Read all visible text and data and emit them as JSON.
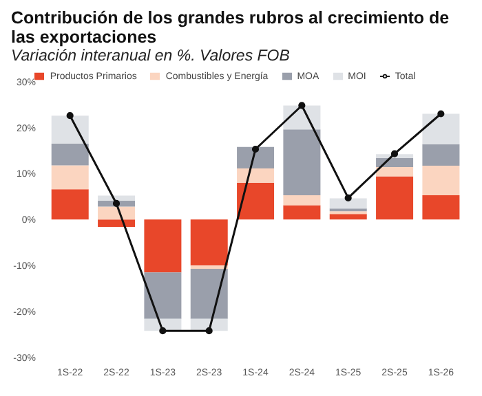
{
  "chart_data": {
    "type": "bar",
    "title": "Contribución de los grandes rubros al crecimiento de las exportaciones",
    "subtitle": "Variación interanual en %. Valores FOB",
    "categories": [
      "1S-22",
      "2S-22",
      "1S-23",
      "2S-23",
      "1S-24",
      "2S-24",
      "1S-25",
      "2S-25",
      "1S-26"
    ],
    "stacked": true,
    "legend": "top",
    "grid": false,
    "ylim": [
      -30,
      30
    ],
    "yticks": [
      {
        "value": -30,
        "label": "-30%"
      },
      {
        "value": -20,
        "label": "-20%"
      },
      {
        "value": -10,
        "label": "-10%"
      },
      {
        "value": 0,
        "label": "0%"
      },
      {
        "value": 10,
        "label": "10%"
      },
      {
        "value": 20,
        "label": "20%"
      },
      {
        "value": 30,
        "label": "30%"
      }
    ],
    "series": [
      {
        "name": "Productos Primarios",
        "color": "#e8472a",
        "values": [
          6.6,
          -1.6,
          -11.5,
          -10,
          8.0,
          3.1,
          1.2,
          9.4,
          5.3
        ]
      },
      {
        "name": "Combustibles y Energía",
        "color": "#fbd5c0",
        "values": [
          5.2,
          2.8,
          0,
          -0.7,
          3.1,
          2.2,
          0.6,
          2.0,
          6.4
        ]
      },
      {
        "name": "MOA",
        "color": "#9a9fab",
        "values": [
          4.7,
          1.3,
          -10.1,
          -10.9,
          4.7,
          14.3,
          0.6,
          2.0,
          4.7
        ]
      },
      {
        "name": "MOI",
        "color": "#dfe2e6",
        "values": [
          6.1,
          1.1,
          -2.6,
          -2.6,
          0,
          5.2,
          2.2,
          0.8,
          6.6
        ]
      },
      {
        "name": "Total",
        "type": "line",
        "color": "#111111",
        "marker": "circle",
        "line_style": "solid",
        "values": [
          22.6,
          3.5,
          -24.2,
          -24.2,
          15.3,
          24.8,
          4.7,
          14.3,
          23.0
        ]
      }
    ]
  }
}
